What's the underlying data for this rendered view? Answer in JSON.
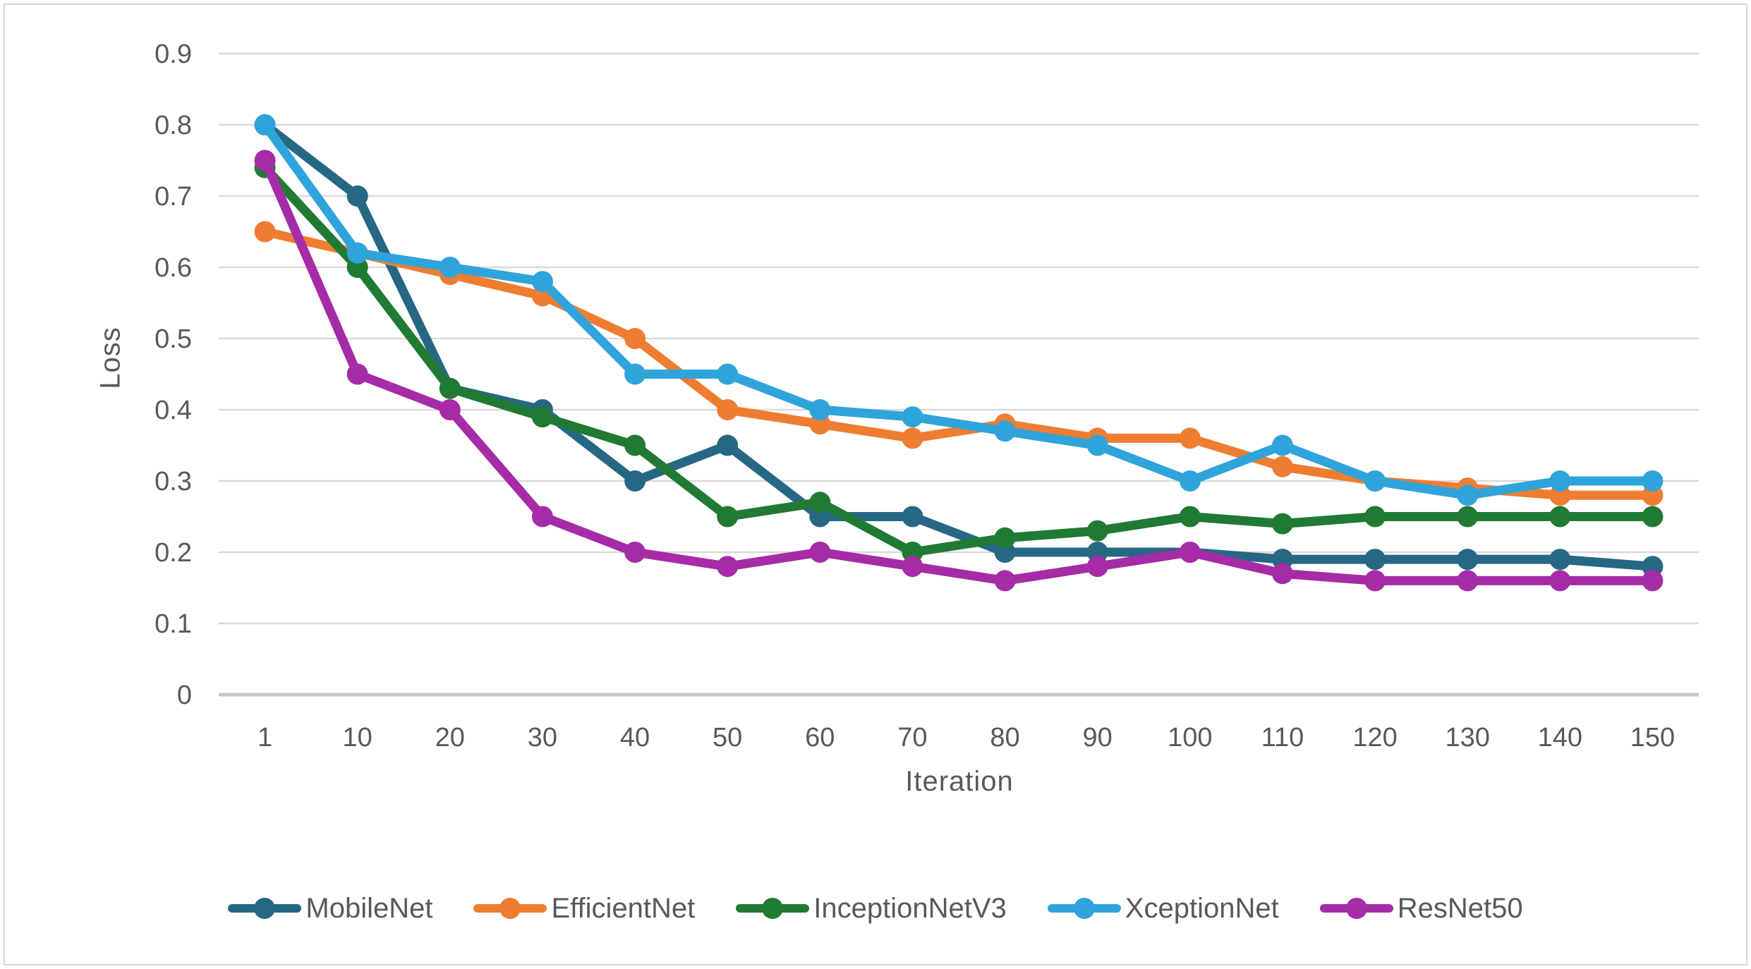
{
  "chart_data": {
    "type": "line",
    "title": "",
    "xlabel": "Iteration",
    "ylabel": "Loss",
    "categories": [
      "1",
      "10",
      "20",
      "30",
      "40",
      "50",
      "60",
      "70",
      "80",
      "90",
      "100",
      "110",
      "120",
      "130",
      "140",
      "150"
    ],
    "ylim": [
      0,
      0.9
    ],
    "ytick_step": 0.1,
    "y_tick_labels": [
      "0",
      "0.1",
      "0.2",
      "0.3",
      "0.4",
      "0.5",
      "0.6",
      "0.7",
      "0.8",
      "0.9"
    ],
    "grid": true,
    "legend_position": "bottom",
    "series": [
      {
        "name": "MobileNet",
        "color": "#266884",
        "values": [
          0.8,
          0.7,
          0.43,
          0.4,
          0.3,
          0.35,
          0.25,
          0.25,
          0.2,
          0.2,
          0.2,
          0.19,
          0.19,
          0.19,
          0.19,
          0.18
        ]
      },
      {
        "name": "EfficientNet",
        "color": "#EE7D31",
        "values": [
          0.65,
          0.62,
          0.59,
          0.56,
          0.5,
          0.4,
          0.38,
          0.36,
          0.38,
          0.36,
          0.36,
          0.32,
          0.3,
          0.29,
          0.28,
          0.28
        ]
      },
      {
        "name": "InceptionNetV3",
        "color": "#217A33",
        "values": [
          0.74,
          0.6,
          0.43,
          0.39,
          0.35,
          0.25,
          0.27,
          0.2,
          0.22,
          0.23,
          0.25,
          0.24,
          0.25,
          0.25,
          0.25,
          0.25
        ]
      },
      {
        "name": "XceptionNet",
        "color": "#2EA4DB",
        "values": [
          0.8,
          0.62,
          0.6,
          0.58,
          0.45,
          0.45,
          0.4,
          0.39,
          0.37,
          0.35,
          0.3,
          0.35,
          0.3,
          0.28,
          0.3,
          0.3
        ]
      },
      {
        "name": "ResNet50",
        "color": "#A62BA6",
        "values": [
          0.75,
          0.45,
          0.4,
          0.25,
          0.2,
          0.18,
          0.2,
          0.18,
          0.16,
          0.18,
          0.2,
          0.17,
          0.16,
          0.16,
          0.16,
          0.16
        ]
      }
    ],
    "style": {
      "grid_color": "#d9d9d9",
      "axis_line_color": "#c9c7c7",
      "text_color": "#595959",
      "line_width": 13,
      "marker_radius": 15
    }
  }
}
